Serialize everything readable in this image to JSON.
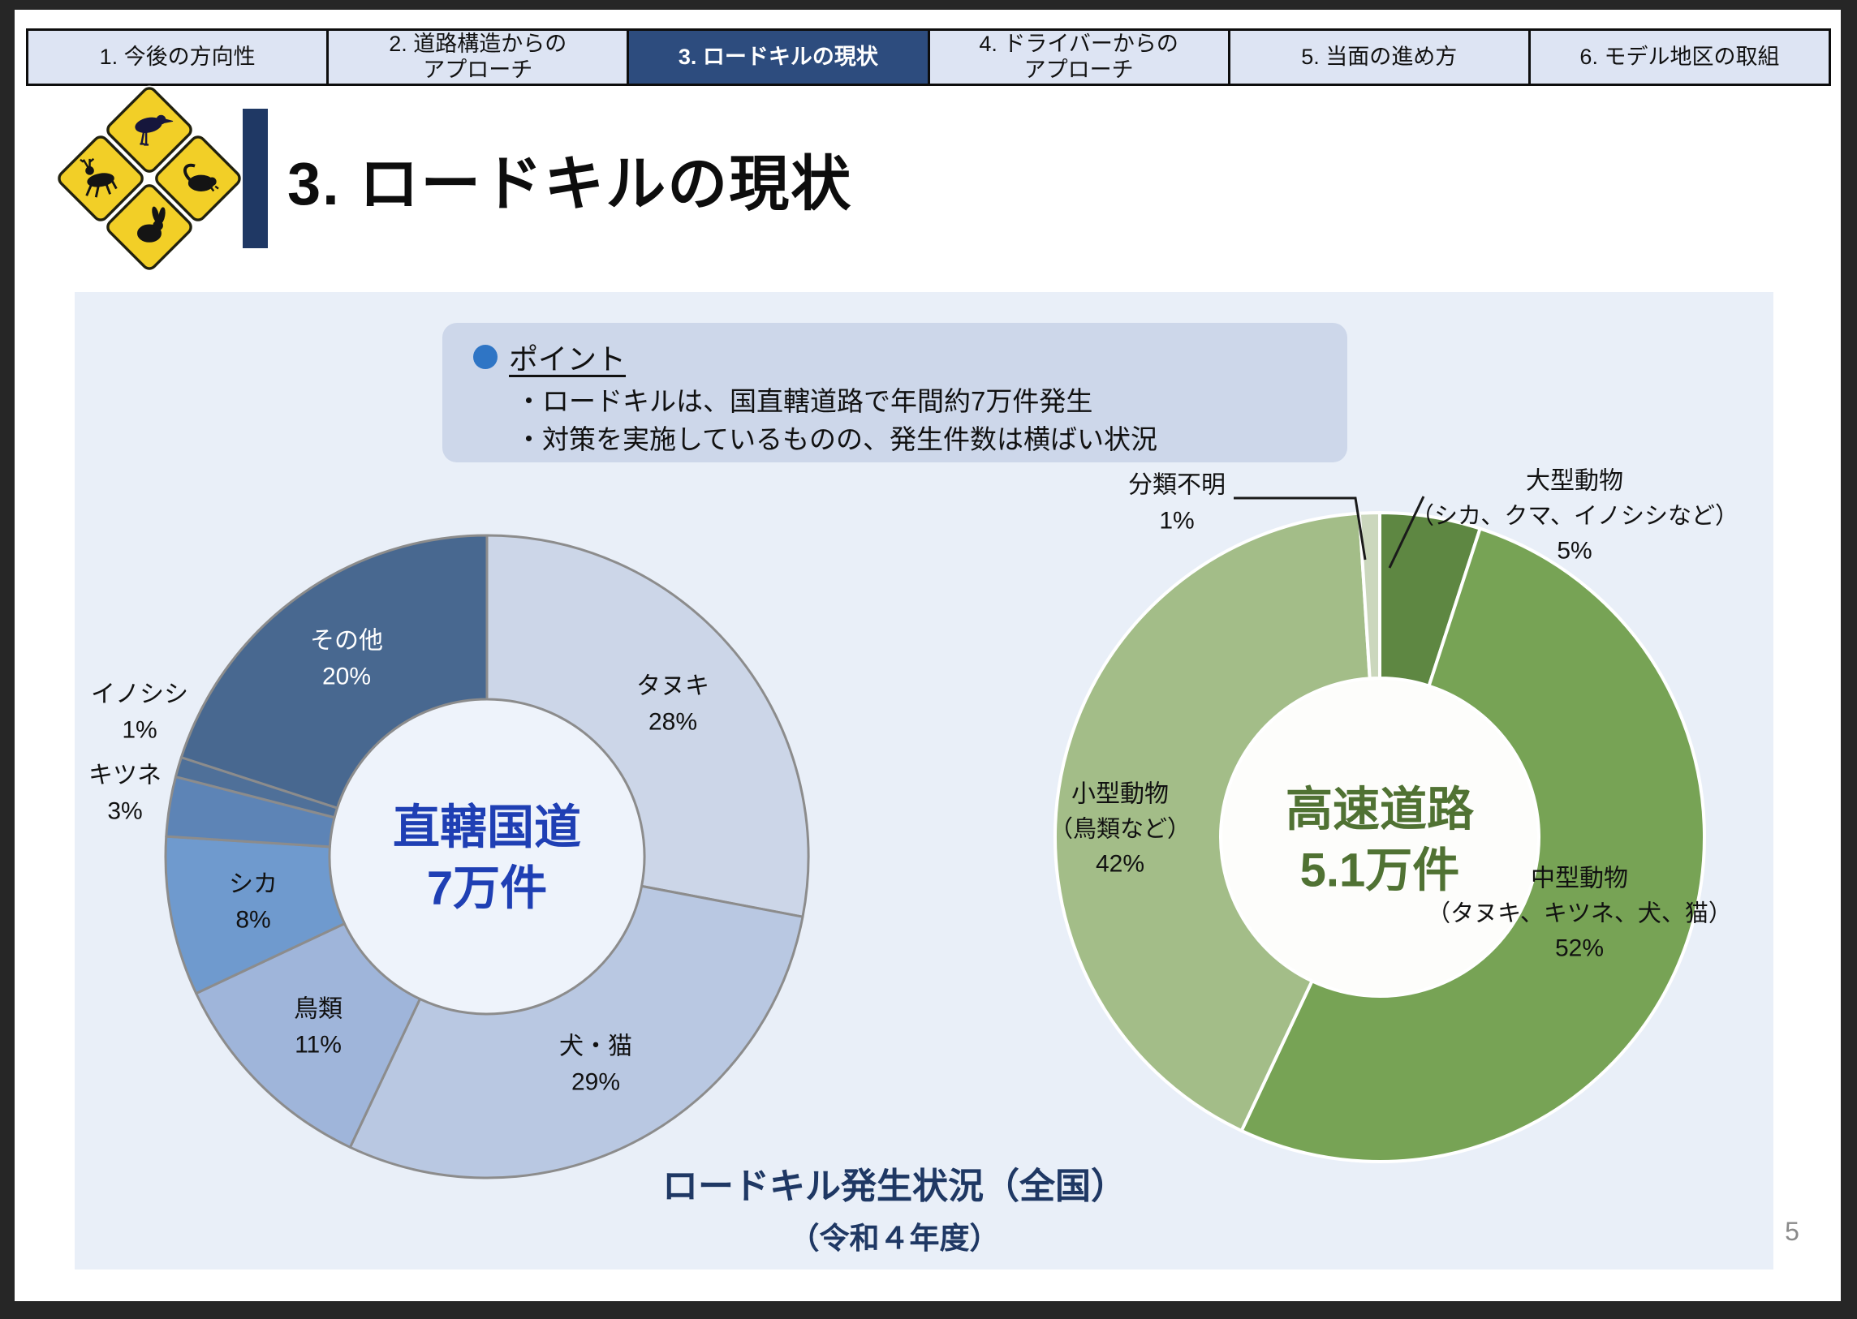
{
  "tabs": [
    {
      "line1": "1. 今後の方向性",
      "line2": "",
      "active": false
    },
    {
      "line1": "2. 道路構造からの",
      "line2": "アプローチ",
      "active": false
    },
    {
      "line1": "3. ロードキルの現状",
      "line2": "",
      "active": true
    },
    {
      "line1": "4. ドライバーからの",
      "line2": "アプローチ",
      "active": false
    },
    {
      "line1": "5. 当面の進め方",
      "line2": "",
      "active": false
    },
    {
      "line1": "6. モデル地区の取組",
      "line2": "",
      "active": false
    }
  ],
  "header": {
    "title": "3. ロードキルの現状"
  },
  "point_box": {
    "heading": "ポイント",
    "bullets": [
      "・ロードキルは、国直轄道路で年間約7万件発生",
      "・対策を実施しているものの、発生件数は横ばい状況"
    ]
  },
  "chart_data": [
    {
      "type": "pie",
      "subtype": "donut",
      "name": "national-directly-managed-routes",
      "center": {
        "line1": "直轄国道",
        "line2": "7万件"
      },
      "unit": "%",
      "start_angle_deg": 0,
      "stroke": "#8c8c8c",
      "stroke_width": 3,
      "center_fill": "#eef3fb",
      "segments": [
        {
          "label": "タヌキ",
          "value": 28,
          "pct": "28%",
          "color": "#ccd6e8"
        },
        {
          "label": "犬・猫",
          "value": 29,
          "pct": "29%",
          "color": "#b9c8e2"
        },
        {
          "label": "鳥類",
          "value": 11,
          "pct": "11%",
          "color": "#9fb5da"
        },
        {
          "label": "シカ",
          "value": 8,
          "pct": "8%",
          "color": "#6f9ace"
        },
        {
          "label": "キツネ",
          "value": 3,
          "pct": "3%",
          "color": "#5d84b6"
        },
        {
          "label": "イノシシ",
          "value": 1,
          "pct": "1%",
          "color": "#4f7099"
        },
        {
          "label": "その他",
          "value": 20,
          "pct": "20%",
          "color": "#486890"
        }
      ]
    },
    {
      "type": "pie",
      "subtype": "donut",
      "name": "expressways",
      "center": {
        "line1": "高速道路",
        "line2": "5.1万件"
      },
      "unit": "%",
      "start_angle_deg": 0,
      "stroke": "#ffffff",
      "stroke_width": 4,
      "center_fill": "#fdfdfb",
      "segments": [
        {
          "label": "大型動物",
          "sublabel": "（シカ、クマ、イノシシなど）",
          "value": 5,
          "pct": "5%",
          "color": "#5e8742"
        },
        {
          "label": "中型動物",
          "sublabel": "（タヌキ、キツネ、犬、猫）",
          "value": 52,
          "pct": "52%",
          "color": "#77a355"
        },
        {
          "label": "小型動物",
          "sublabel": "（鳥類など）",
          "value": 42,
          "pct": "42%",
          "color": "#a3bd88"
        },
        {
          "label": "分類不明",
          "sublabel": "",
          "value": 1,
          "pct": "1%",
          "color": "#cbd7bd"
        }
      ]
    }
  ],
  "caption": {
    "line1": "ロードキル発生状況（全国）",
    "line2": "（令和４年度）"
  },
  "page": {
    "number": "5"
  },
  "colors": {
    "active_tab_bg": "#2d4c7e",
    "inactive_tab_bg": "#dde4f3",
    "panel_bg": "#e9eff8",
    "point_box_bg": "#cdd7ea",
    "point_dot": "#2f75c5",
    "left_center_text": "#1f3fb4",
    "right_center_text": "#507233",
    "caption_text": "#1f3864",
    "title_accent_bar": "#1f3864",
    "sign_yellow": "#f2cf27"
  }
}
